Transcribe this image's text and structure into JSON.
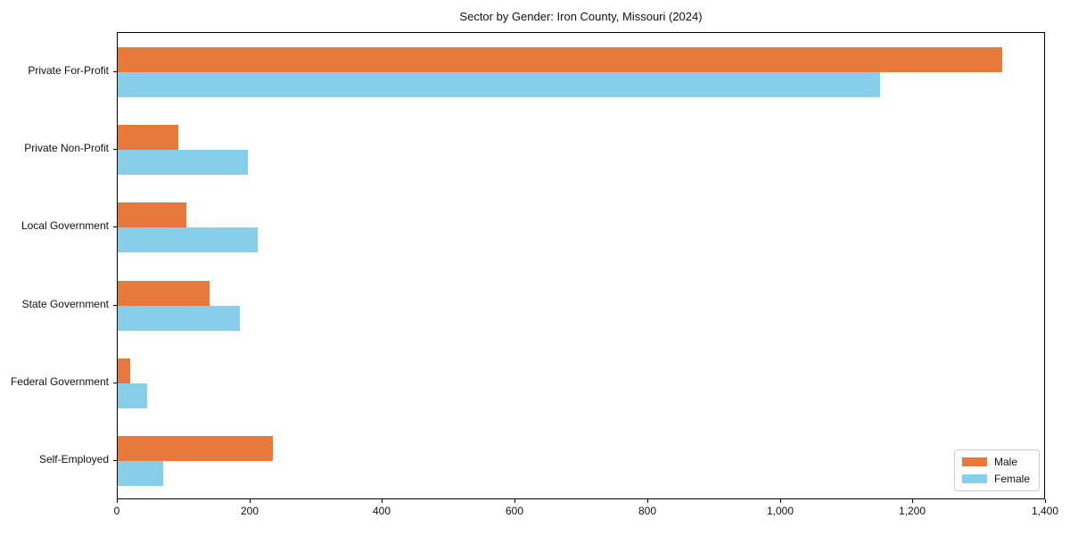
{
  "title": "Sector by Gender: Iron County, Missouri (2024)",
  "legend": {
    "position": "lower right",
    "entries": [
      "Male",
      "Female"
    ]
  },
  "chart_data": {
    "type": "bar",
    "orientation": "horizontal",
    "title": "Sector by Gender: Iron County, Missouri (2024)",
    "xlabel": "",
    "ylabel": "",
    "categories": [
      "Private For-Profit",
      "Private Non-Profit",
      "Local Government",
      "State Government",
      "Federal Government",
      "Self-Employed"
    ],
    "series": [
      {
        "name": "Male",
        "color": "#E8793C",
        "values": [
          1334,
          92,
          104,
          138,
          19,
          234
        ]
      },
      {
        "name": "Female",
        "color": "#87CEEB",
        "values": [
          1150,
          196,
          211,
          184,
          44,
          69
        ]
      }
    ],
    "xlim": [
      0,
      1400
    ],
    "xticks": [
      0,
      200,
      400,
      600,
      800,
      1000,
      1200,
      1400
    ],
    "xtick_labels": [
      "0",
      "200",
      "400",
      "600",
      "800",
      "1,000",
      "1,200",
      "1,400"
    ],
    "grid": false,
    "legend_position": "lower right",
    "background_color": "#ffffff",
    "spine_color": "#000000"
  }
}
